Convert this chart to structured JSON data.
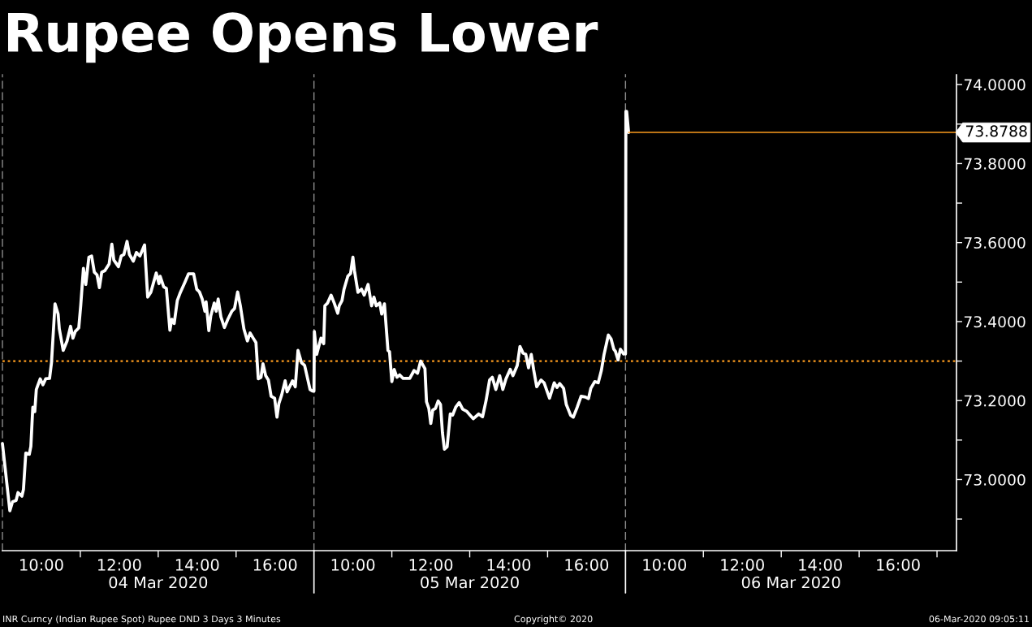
{
  "chart_data": [
    {
      "type": "line",
      "title": "Rupee Opens Lower",
      "xlabel": "04 Mar 2020",
      "tick_labels": "x",
      "xlim": [
        9,
        17
      ],
      "xticks": [
        {
          "value": 10,
          "label": "10:00"
        },
        {
          "value": 11,
          "label": null
        },
        {
          "value": 12,
          "label": "12:00"
        },
        {
          "value": 13,
          "label": null
        },
        {
          "value": 14,
          "label": "14:00"
        },
        {
          "value": 15,
          "label": null
        },
        {
          "value": 16,
          "label": "16:00"
        }
      ],
      "ylim": [
        72.82,
        74.025
      ],
      "ref_lines": [
        {
          "axis": "y",
          "value": 73.3,
          "color": "#fa9a1e",
          "line_style": "dotted"
        }
      ],
      "series": [
        {
          "color": "#ffffff",
          "x": [
            9.0,
            9.07,
            9.19,
            9.26,
            9.35,
            9.4,
            9.5,
            9.54,
            9.6,
            9.69,
            9.73,
            9.78,
            9.83,
            9.87,
            9.97,
            10.04,
            10.11,
            10.21,
            10.26,
            10.35,
            10.43,
            10.46,
            10.56,
            10.66,
            10.75,
            10.81,
            10.87,
            10.96,
            11.01,
            11.08,
            11.14,
            11.22,
            11.29,
            11.36,
            11.43,
            11.49,
            11.55,
            11.63,
            11.74,
            11.81,
            11.86,
            11.98,
            12.05,
            12.12,
            12.2,
            12.26,
            12.36,
            12.44,
            12.53,
            12.65,
            12.73,
            12.81,
            12.95,
            13.02,
            13.05,
            13.14,
            13.21,
            13.3,
            13.35,
            13.41,
            13.49,
            13.57,
            13.68,
            13.78,
            13.91,
            13.99,
            14.06,
            14.13,
            14.2,
            14.23,
            14.3,
            14.35,
            14.44,
            14.49,
            14.54,
            14.61,
            14.7,
            14.79,
            14.89,
            14.96,
            15.04,
            15.11,
            15.2,
            15.29,
            15.36,
            15.44,
            15.51,
            15.57,
            15.64,
            15.69,
            15.76,
            15.83,
            15.9,
            15.99,
            16.05,
            16.1,
            16.17,
            16.26,
            16.31,
            16.45,
            16.52,
            16.59,
            16.68,
            16.76,
            16.9,
            16.96
          ],
          "values": [
            73.091,
            73.029,
            72.921,
            72.944,
            72.947,
            72.967,
            72.958,
            72.975,
            73.067,
            73.064,
            73.084,
            73.183,
            73.172,
            73.228,
            73.255,
            73.24,
            73.255,
            73.256,
            73.296,
            73.445,
            73.419,
            73.382,
            73.327,
            73.351,
            73.388,
            73.358,
            73.375,
            73.384,
            73.44,
            73.535,
            73.494,
            73.563,
            73.566,
            73.525,
            73.518,
            73.486,
            73.525,
            73.529,
            73.546,
            73.596,
            73.556,
            73.539,
            73.566,
            73.57,
            73.603,
            73.57,
            73.553,
            73.575,
            73.566,
            73.594,
            73.462,
            73.474,
            73.523,
            73.496,
            73.515,
            73.488,
            73.484,
            73.378,
            73.406,
            73.395,
            73.453,
            73.474,
            73.498,
            73.521,
            73.521,
            73.482,
            73.475,
            73.457,
            73.426,
            73.45,
            73.377,
            73.414,
            73.447,
            73.426,
            73.457,
            73.412,
            73.385,
            73.406,
            73.426,
            73.433,
            73.475,
            73.44,
            73.382,
            73.351,
            73.371,
            73.358,
            73.347,
            73.255,
            73.259,
            73.293,
            73.263,
            73.252,
            73.211,
            73.206,
            73.158,
            73.193,
            73.214,
            73.25,
            73.222,
            73.25,
            73.235,
            73.327,
            73.296,
            73.289,
            73.228,
            73.224
          ]
        }
      ],
      "annotations": [
        "INR Curncy (Indian Rupee Spot) Rupee DND 3 Days 3 Minutes",
        "Copyright© 2020",
        "06-Mar-2020 09:05:11"
      ]
    },
    {
      "type": "line",
      "xlabel": "05 Mar 2020",
      "tick_labels": "x",
      "xlim": [
        9,
        17
      ],
      "xticks": [
        {
          "value": 10,
          "label": "10:00"
        },
        {
          "value": 11,
          "label": null
        },
        {
          "value": 12,
          "label": "12:00"
        },
        {
          "value": 13,
          "label": null
        },
        {
          "value": 14,
          "label": "14:00"
        },
        {
          "value": 15,
          "label": null
        },
        {
          "value": 16,
          "label": "16:00"
        }
      ],
      "ylim": [
        72.82,
        74.025
      ],
      "ref_lines": [
        {
          "axis": "y",
          "value": 73.3,
          "color": "#fa9a1e",
          "line_style": "dotted"
        }
      ],
      "series": [
        {
          "color": "#ffffff",
          "x": [
            9.0,
            9.01,
            9.07,
            9.18,
            9.25,
            9.28,
            9.35,
            9.44,
            9.52,
            9.61,
            9.65,
            9.72,
            9.77,
            9.87,
            9.94,
            10.0,
            10.04,
            10.13,
            10.22,
            10.29,
            10.39,
            10.48,
            10.54,
            10.6,
            10.69,
            10.74,
            10.81,
            10.9,
            10.94,
            11.0,
            11.06,
            11.13,
            11.2,
            11.29,
            11.46,
            11.57,
            11.66,
            11.74,
            11.85,
            11.89,
            11.95,
            12.0,
            12.05,
            12.12,
            12.19,
            12.25,
            12.3,
            12.35,
            12.42,
            12.5,
            12.56,
            12.64,
            12.73,
            12.82,
            12.92,
            13.01,
            13.09,
            13.23,
            13.33,
            13.42,
            13.51,
            13.58,
            13.67,
            13.77,
            13.85,
            13.93,
            14.04,
            14.11,
            14.22,
            14.29,
            14.37,
            14.44,
            14.51,
            14.58,
            14.64,
            14.72,
            14.83,
            14.91,
            15.05,
            15.17,
            15.24,
            15.31,
            15.41,
            15.48,
            15.59,
            15.66,
            15.76,
            15.86,
            15.97,
            16.05,
            16.11,
            16.21,
            16.3,
            16.38,
            16.45,
            16.56,
            16.63,
            16.7,
            16.74,
            16.81,
            16.87,
            16.95
          ],
          "values": [
            73.224,
            73.375,
            73.317,
            73.358,
            73.344,
            73.44,
            73.447,
            73.467,
            73.447,
            73.421,
            73.44,
            73.453,
            73.481,
            73.515,
            73.522,
            73.563,
            73.529,
            73.474,
            73.482,
            73.467,
            73.494,
            73.44,
            73.462,
            73.44,
            73.447,
            73.419,
            73.445,
            73.327,
            73.324,
            73.248,
            73.279,
            73.259,
            73.265,
            73.256,
            73.256,
            73.276,
            73.269,
            73.3,
            73.281,
            73.197,
            73.18,
            73.142,
            73.176,
            73.18,
            73.199,
            73.19,
            73.118,
            73.077,
            73.083,
            73.166,
            73.163,
            73.183,
            73.195,
            73.178,
            73.173,
            73.163,
            73.154,
            73.166,
            73.159,
            73.2,
            73.252,
            73.259,
            73.228,
            73.263,
            73.228,
            73.255,
            73.279,
            73.263,
            73.289,
            73.337,
            73.32,
            73.317,
            73.283,
            73.317,
            73.279,
            73.235,
            73.252,
            73.245,
            73.206,
            73.245,
            73.233,
            73.243,
            73.231,
            73.19,
            73.163,
            73.158,
            73.183,
            73.211,
            73.209,
            73.205,
            73.231,
            73.248,
            73.245,
            73.276,
            73.317,
            73.366,
            73.356,
            73.33,
            73.325,
            73.303,
            73.33,
            73.318
          ]
        }
      ]
    },
    {
      "type": "line",
      "xlabel": "06 Mar 2020",
      "xlim": [
        9,
        17.5
      ],
      "xticks": [
        {
          "value": 10,
          "label": "10:00"
        },
        {
          "value": 11,
          "label": null
        },
        {
          "value": 12,
          "label": "12:00"
        },
        {
          "value": 13,
          "label": null
        },
        {
          "value": 14,
          "label": "14:00"
        },
        {
          "value": 15,
          "label": null
        },
        {
          "value": 16,
          "label": "16:00"
        },
        {
          "value": 17,
          "label": null
        }
      ],
      "ylim": [
        72.82,
        74.025
      ],
      "yticks": [
        {
          "value": 72.9,
          "label": null
        },
        {
          "value": 73.0,
          "label": "73.0000"
        },
        {
          "value": 73.1,
          "label": null
        },
        {
          "value": 73.2,
          "label": "73.2000"
        },
        {
          "value": 73.3,
          "label": null
        },
        {
          "value": 73.4,
          "label": "73.4000"
        },
        {
          "value": 73.5,
          "label": null
        },
        {
          "value": 73.6,
          "label": "73.6000"
        },
        {
          "value": 73.7,
          "label": null
        },
        {
          "value": 73.8,
          "label": "73.8000"
        },
        {
          "value": 73.9,
          "label": null
        },
        {
          "value": 74.0,
          "label": "74.0000"
        }
      ],
      "ref_lines": [
        {
          "axis": "y",
          "value": 73.3,
          "color": "#fa9a1e",
          "line_style": "dotted"
        }
      ],
      "series": [
        {
          "color": "#ffffff",
          "x": [
            9.0,
            9.01,
            9.03,
            9.08
          ],
          "values": [
            73.318,
            73.932,
            73.932,
            73.8788
          ]
        },
        {
          "color": "#fa9a1e",
          "x": [
            9.08,
            17.5
          ],
          "values": [
            73.8788,
            73.8788
          ],
          "value_labels": [
            null,
            "73.8788"
          ]
        }
      ]
    }
  ]
}
